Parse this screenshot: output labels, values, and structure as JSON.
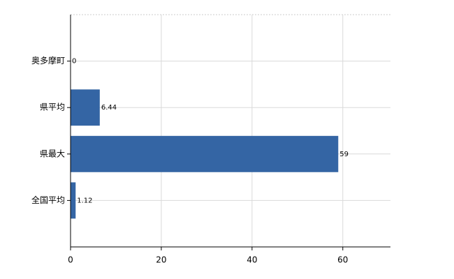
{
  "chart_data": {
    "type": "bar",
    "orientation": "horizontal",
    "categories": [
      "奥多摩町",
      "県平均",
      "県最大",
      "全国平均"
    ],
    "values": [
      0,
      6.44,
      59,
      1.12
    ],
    "color": "#3465a4",
    "xlim": [
      0,
      70.5
    ],
    "xticks": [
      0,
      20,
      40,
      60
    ],
    "grid": true
  }
}
